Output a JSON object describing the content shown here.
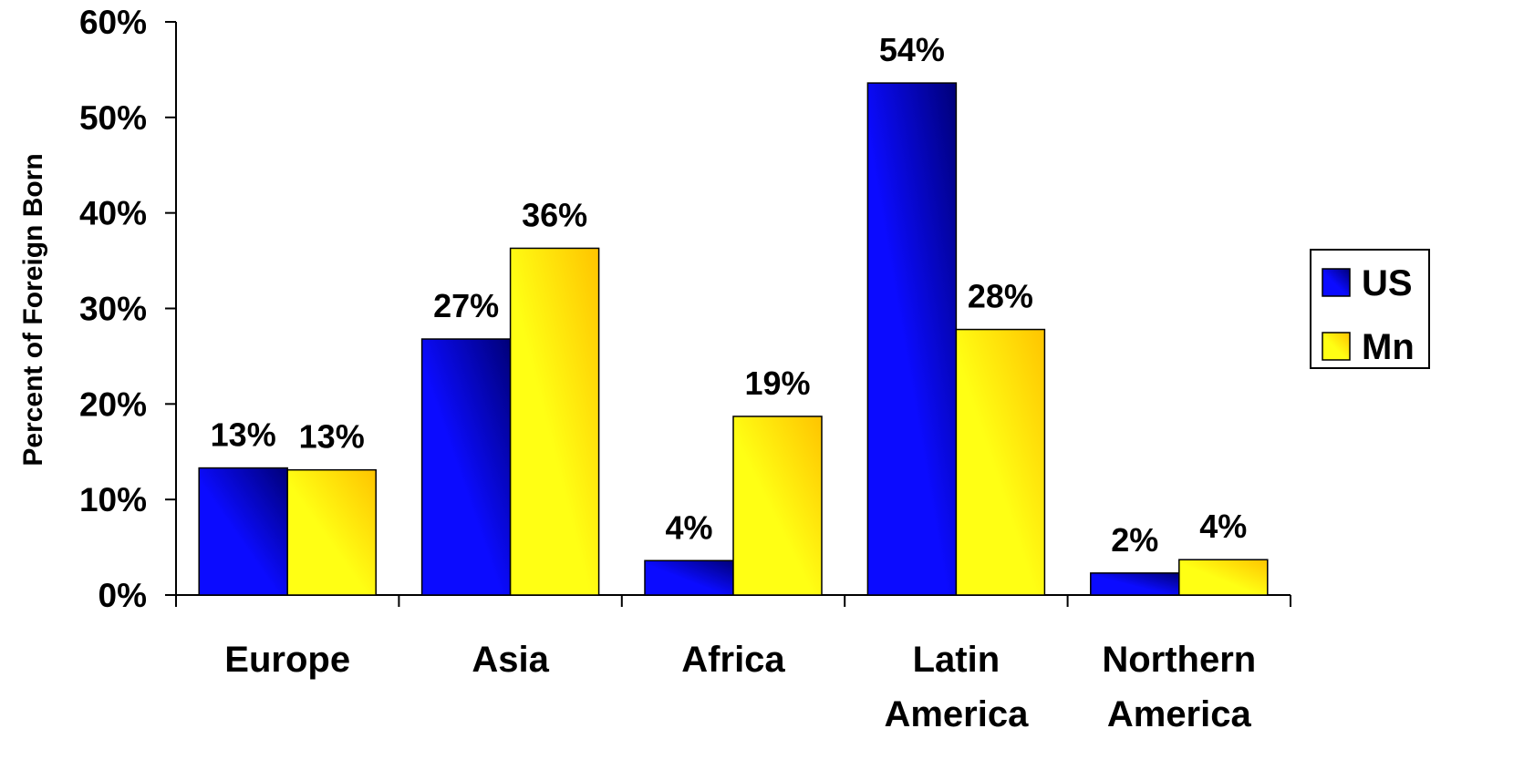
{
  "chart_data": {
    "type": "bar",
    "title": "",
    "xlabel": "",
    "ylabel": "Percent of Foreign Born",
    "ylim": [
      0,
      60
    ],
    "y_ticks": [
      "0%",
      "10%",
      "20%",
      "30%",
      "40%",
      "50%",
      "60%"
    ],
    "y_tick_values": [
      0,
      10,
      20,
      30,
      40,
      50,
      60
    ],
    "grid": false,
    "legend_position": "right",
    "categories": [
      [
        "Europe"
      ],
      [
        "Asia"
      ],
      [
        "Africa"
      ],
      [
        "Latin",
        "America"
      ],
      [
        "Northern",
        "America"
      ]
    ],
    "series": [
      {
        "name": "US",
        "color_light": "#0b0bff",
        "color_dark": "#000078",
        "values": [
          13.3,
          26.8,
          3.6,
          53.6,
          2.3
        ],
        "labels": [
          "13%",
          "27%",
          "4%",
          "54%",
          "2%"
        ]
      },
      {
        "name": "Mn",
        "color_light": "#ffff14",
        "color_dark": "#ffc400",
        "values": [
          13.1,
          36.3,
          18.7,
          27.8,
          3.7
        ],
        "labels": [
          "13%",
          "36%",
          "19%",
          "28%",
          "4%"
        ]
      }
    ]
  }
}
